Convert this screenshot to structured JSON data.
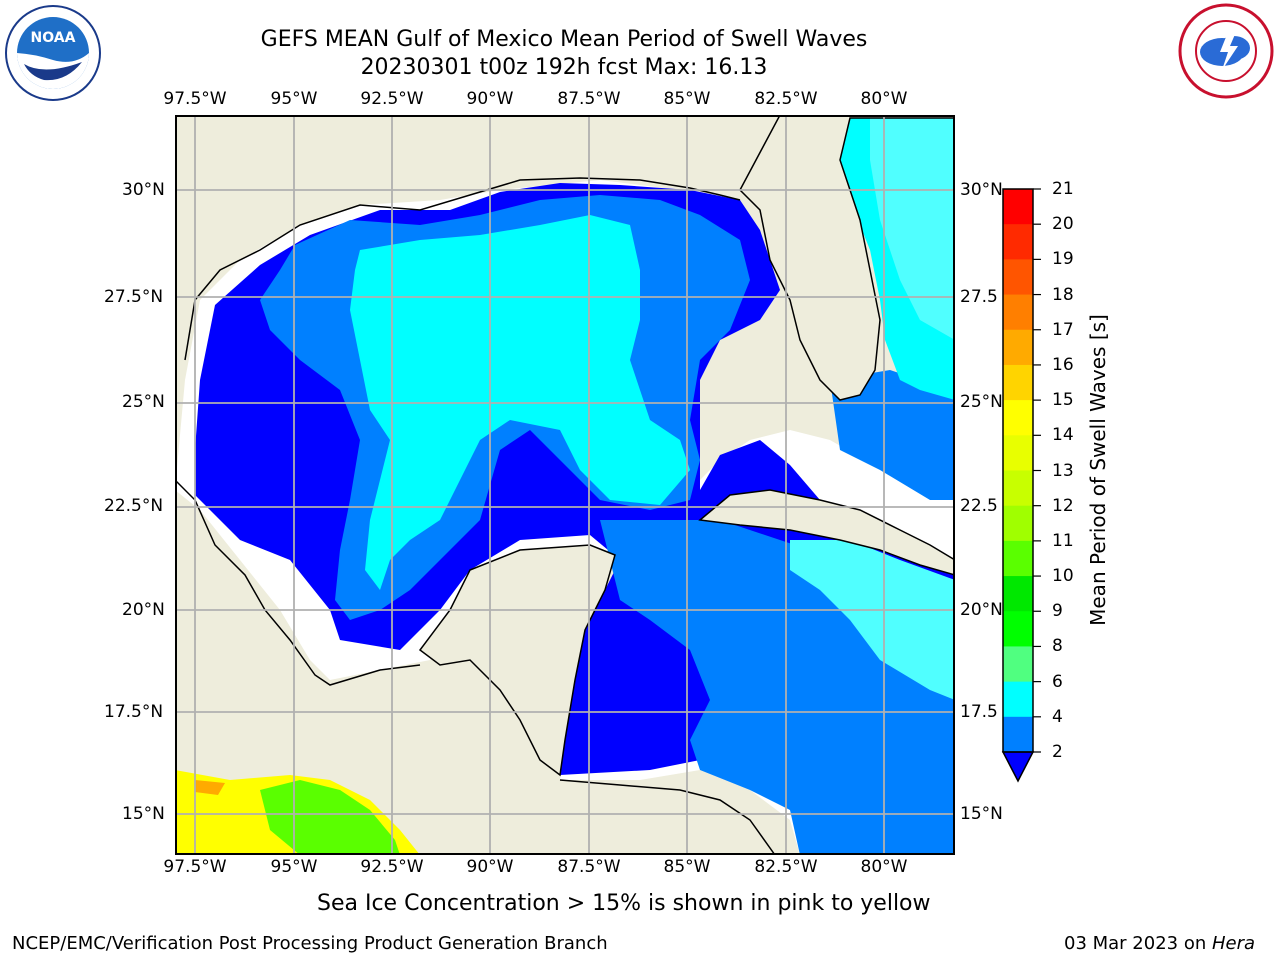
{
  "title_line1": "GEFS MEAN Gulf of Mexico Mean Period of Swell Waves",
  "title_line2": "20230301 t00z 192h fcst   Max: 16.13",
  "lon_labels": [
    "97.5°W",
    "95°W",
    "92.5°W",
    "90°W",
    "87.5°W",
    "85°W",
    "82.5°W",
    "80°W"
  ],
  "lat_labels_left": [
    "30°N",
    "27.5°N",
    "25°N",
    "22.5°N",
    "20°N",
    "17.5°N",
    "15°N"
  ],
  "lat_labels_right": [
    "30°N",
    "27.5",
    "25°N",
    "22.5",
    "20°N",
    "17.5",
    "15°N"
  ],
  "colorbar": {
    "label": "Mean Period of Swell Waves [s]",
    "ticks": [
      "21",
      "20",
      "19",
      "18",
      "17",
      "16",
      "15",
      "14",
      "13",
      "12",
      "11",
      "10",
      "9",
      "8",
      "6",
      "4",
      "2"
    ],
    "colors": [
      "#ff0000",
      "#ff2a00",
      "#ff5500",
      "#ff7f00",
      "#ffaa00",
      "#ffd400",
      "#ffff00",
      "#e8ff00",
      "#c8ff00",
      "#a0ff00",
      "#5aff00",
      "#00e800",
      "#00ff00",
      "#50ff80",
      "#a0ffff",
      "#50ffff",
      "#00ffff",
      "#0080ff",
      "#0000ff"
    ]
  },
  "colors": {
    "land": "#eeeddc",
    "deep_blue": "#0000ff",
    "mid_blue": "#0080ff",
    "cyan": "#00ffff",
    "light_cyan": "#50ffff",
    "grid": "#b0b0b0"
  },
  "note": "Sea Ice Concentration > 15% is shown in pink to yellow",
  "footer_left": "NCEP/EMC/Verification Post Processing Product Generation Branch",
  "footer_date": "03 Mar 2023 on",
  "footer_machine": "Hera",
  "logos": {
    "left": "NOAA",
    "right": "NATIONAL WEATHER SERVICE"
  }
}
